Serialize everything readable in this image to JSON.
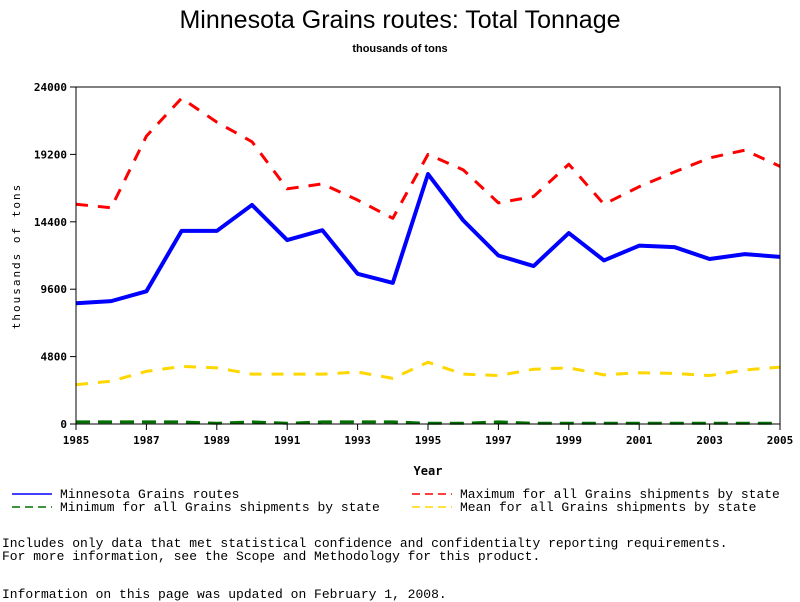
{
  "chart_data": {
    "type": "line",
    "title": "Minnesota Grains routes: Total Tonnage",
    "subtitle": "thousands of tons",
    "xlabel": "Year",
    "ylabel": "thousands of tons",
    "xlim": [
      1985,
      2005
    ],
    "ylim": [
      0,
      24000
    ],
    "x_ticks": [
      "1985",
      "1987",
      "1989",
      "1991",
      "1993",
      "1995",
      "1997",
      "1999",
      "2001",
      "2003",
      "2005"
    ],
    "y_ticks": [
      "0",
      "4800",
      "9600",
      "14400",
      "19200",
      "24000"
    ],
    "x": [
      1985,
      1986,
      1987,
      1988,
      1989,
      1990,
      1991,
      1992,
      1993,
      1994,
      1995,
      1996,
      1997,
      1998,
      1999,
      2000,
      2001,
      2002,
      2003,
      2004,
      2005
    ],
    "legend_position": "bottom",
    "series": [
      {
        "name": "Minnesota Grains routes",
        "color": "#0000ff",
        "style": "solid",
        "values": [
          8600,
          8750,
          9450,
          13750,
          13750,
          15600,
          13100,
          13800,
          10700,
          10050,
          17800,
          14500,
          12000,
          11250,
          13600,
          11650,
          12700,
          12600,
          11750,
          12100,
          11900
        ]
      },
      {
        "name": "Maximum for all Grains shipments by state",
        "color": "#ff0000",
        "style": "dashed",
        "values": [
          15650,
          15400,
          20500,
          23200,
          21500,
          20100,
          16750,
          17100,
          15950,
          14650,
          19200,
          18100,
          15750,
          16200,
          18500,
          15650,
          16900,
          17950,
          18950,
          19500,
          18350
        ]
      },
      {
        "name": "Minimum for all Grains shipments by state",
        "color": "#007000",
        "style": "dashed",
        "values": [
          150,
          150,
          150,
          150,
          50,
          150,
          50,
          150,
          150,
          150,
          50,
          50,
          150,
          50,
          50,
          50,
          50,
          50,
          50,
          50,
          50
        ]
      },
      {
        "name": "Mean for all Grains shipments by state",
        "color": "#ffd700",
        "style": "dashed",
        "values": [
          2800,
          3050,
          3750,
          4100,
          4000,
          3550,
          3550,
          3550,
          3700,
          3250,
          4400,
          3550,
          3450,
          3900,
          4000,
          3500,
          3650,
          3600,
          3450,
          3850,
          4050
        ]
      }
    ]
  },
  "notes": {
    "line1": "Includes only data that met statistical confidence and confidentialty reporting requirements.",
    "line2": "For more information, see the Scope and Methodology for this product.",
    "updated": "Information on this page was updated on February 1, 2008."
  }
}
